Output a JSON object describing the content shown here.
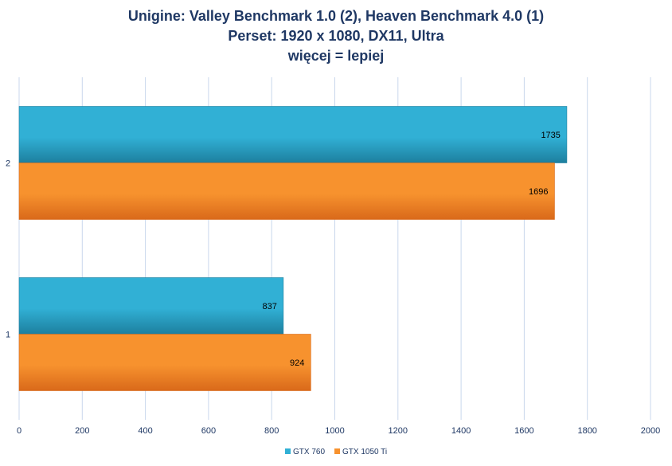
{
  "chart_data": {
    "type": "bar",
    "orientation": "horizontal",
    "title_lines": [
      "Unigine:  Valley Benchmark 1.0 (2), Heaven Benchmark 4.0 (1)",
      "Perset: 1920 x 1080, DX11, Ultra",
      "więcej = lepiej"
    ],
    "categories": [
      "1",
      "2"
    ],
    "series": [
      {
        "name": "GTX 760",
        "values": [
          837,
          1735
        ],
        "color": "#31b0d5",
        "color_dark": "#1d7f9e"
      },
      {
        "name": "GTX 1050 Ti",
        "values": [
          924,
          1696
        ],
        "color": "#f7922e",
        "color_dark": "#d9691a"
      }
    ],
    "xlim": [
      0,
      2000
    ],
    "xticks": [
      "0",
      "200",
      "400",
      "600",
      "800",
      "1000",
      "1200",
      "1400",
      "1600",
      "1800",
      "2000"
    ],
    "xtick_values": [
      0,
      200,
      400,
      600,
      800,
      1000,
      1200,
      1400,
      1600,
      1800,
      2000
    ],
    "grid": "vertical",
    "legend_position": "bottom",
    "data_labels": "inside-end"
  }
}
